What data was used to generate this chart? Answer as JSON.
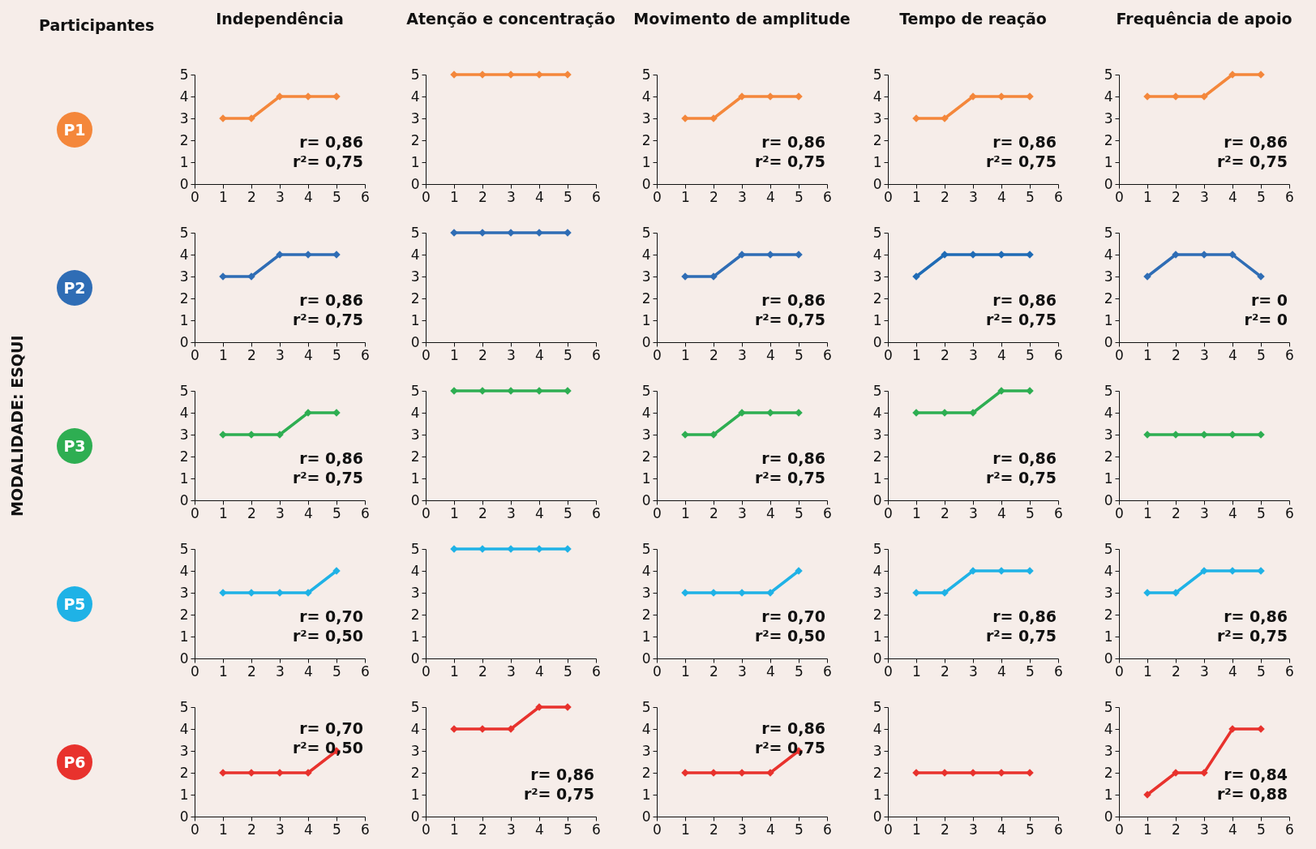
{
  "chart_data": [
    {
      "type": "other",
      "title": "MODALIDADE: ESQUI",
      "annotations": [
        "Participantes"
      ]
    },
    {
      "type": "line",
      "title": "Independência",
      "ylabel": "P1",
      "x": [
        1,
        2,
        3,
        4,
        5
      ],
      "series": [
        {
          "color": "#f4873b",
          "values": [
            3,
            3,
            4,
            4,
            4
          ]
        }
      ],
      "xlim": [
        0,
        6
      ],
      "xticks": [
        0,
        1,
        2,
        3,
        4,
        5,
        6
      ],
      "ylim": [
        0,
        5
      ],
      "yticks": [
        0,
        1,
        2,
        3,
        4,
        5
      ],
      "marker": "diamond",
      "annotations": [
        "r= 0,86",
        "r²= 0,75"
      ]
    },
    {
      "type": "line",
      "title": "Atenção e concentração",
      "x": [
        1,
        2,
        3,
        4,
        5
      ],
      "series": [
        {
          "color": "#f4873b",
          "values": [
            5,
            5,
            5,
            5,
            5
          ]
        }
      ],
      "xlim": [
        0,
        6
      ],
      "xticks": [
        0,
        1,
        2,
        3,
        4,
        5,
        6
      ],
      "ylim": [
        0,
        5
      ],
      "yticks": [
        0,
        1,
        2,
        3,
        4,
        5
      ],
      "marker": "diamond"
    },
    {
      "type": "line",
      "title": "Movimento de amplitude",
      "x": [
        1,
        2,
        3,
        4,
        5
      ],
      "series": [
        {
          "color": "#f4873b",
          "values": [
            3,
            3,
            4,
            4,
            4
          ]
        }
      ],
      "xlim": [
        0,
        6
      ],
      "xticks": [
        0,
        1,
        2,
        3,
        4,
        5,
        6
      ],
      "ylim": [
        0,
        5
      ],
      "yticks": [
        0,
        1,
        2,
        3,
        4,
        5
      ],
      "marker": "diamond",
      "annotations": [
        "r= 0,86",
        "r²= 0,75"
      ]
    },
    {
      "type": "line",
      "title": "Tempo de reação",
      "x": [
        1,
        2,
        3,
        4,
        5
      ],
      "series": [
        {
          "color": "#f4873b",
          "values": [
            3,
            3,
            4,
            4,
            4
          ]
        }
      ],
      "xlim": [
        0,
        6
      ],
      "xticks": [
        0,
        1,
        2,
        3,
        4,
        5,
        6
      ],
      "ylim": [
        0,
        5
      ],
      "yticks": [
        0,
        1,
        2,
        3,
        4,
        5
      ],
      "marker": "diamond",
      "annotations": [
        "r= 0,86",
        "r²= 0,75"
      ]
    },
    {
      "type": "line",
      "title": "Frequência de apoio",
      "x": [
        1,
        2,
        3,
        4,
        5
      ],
      "series": [
        {
          "color": "#f4873b",
          "values": [
            4,
            4,
            4,
            5,
            5
          ]
        }
      ],
      "xlim": [
        0,
        6
      ],
      "xticks": [
        0,
        1,
        2,
        3,
        4,
        5,
        6
      ],
      "ylim": [
        0,
        5
      ],
      "yticks": [
        0,
        1,
        2,
        3,
        4,
        5
      ],
      "marker": "diamond",
      "annotations": [
        "r= 0,86",
        "r²= 0,75"
      ]
    },
    {
      "type": "line",
      "ylabel": "P2",
      "x": [
        1,
        2,
        3,
        4,
        5
      ],
      "series": [
        {
          "color": "#2f6db5",
          "values": [
            3,
            3,
            4,
            4,
            4
          ]
        }
      ],
      "xlim": [
        0,
        6
      ],
      "xticks": [
        0,
        1,
        2,
        3,
        4,
        5,
        6
      ],
      "ylim": [
        0,
        5
      ],
      "yticks": [
        0,
        1,
        2,
        3,
        4,
        5
      ],
      "marker": "diamond",
      "annotations": [
        "r= 0,86",
        "r²= 0,75"
      ]
    },
    {
      "type": "line",
      "x": [
        1,
        2,
        3,
        4,
        5
      ],
      "series": [
        {
          "color": "#2f6db5",
          "values": [
            5,
            5,
            5,
            5,
            5
          ]
        }
      ],
      "xlim": [
        0,
        6
      ],
      "xticks": [
        0,
        1,
        2,
        3,
        4,
        5,
        6
      ],
      "ylim": [
        0,
        5
      ],
      "yticks": [
        0,
        1,
        2,
        3,
        4,
        5
      ],
      "marker": "diamond"
    },
    {
      "type": "line",
      "x": [
        1,
        2,
        3,
        4,
        5
      ],
      "series": [
        {
          "color": "#2f6db5",
          "values": [
            3,
            3,
            4,
            4,
            4
          ]
        }
      ],
      "xlim": [
        0,
        6
      ],
      "xticks": [
        0,
        1,
        2,
        3,
        4,
        5,
        6
      ],
      "ylim": [
        0,
        5
      ],
      "yticks": [
        0,
        1,
        2,
        3,
        4,
        5
      ],
      "marker": "diamond",
      "annotations": [
        "r= 0,86",
        "r²= 0,75"
      ]
    },
    {
      "type": "line",
      "x": [
        1,
        2,
        3,
        4,
        5
      ],
      "series": [
        {
          "color": "#1f6bb5",
          "values": [
            3,
            4,
            4,
            4,
            4
          ]
        }
      ],
      "xlim": [
        0,
        6
      ],
      "xticks": [
        0,
        1,
        2,
        3,
        4,
        5,
        6
      ],
      "ylim": [
        0,
        5
      ],
      "yticks": [
        0,
        1,
        2,
        3,
        4,
        5
      ],
      "marker": "diamond",
      "annotations": [
        "r= 0,86",
        "r²= 0,75"
      ]
    },
    {
      "type": "line",
      "x": [
        1,
        2,
        3,
        4,
        5
      ],
      "series": [
        {
          "color": "#2f6db5",
          "values": [
            3,
            4,
            4,
            4,
            3
          ]
        }
      ],
      "xlim": [
        0,
        6
      ],
      "xticks": [
        0,
        1,
        2,
        3,
        4,
        5,
        6
      ],
      "ylim": [
        0,
        5
      ],
      "yticks": [
        0,
        1,
        2,
        3,
        4,
        5
      ],
      "marker": "diamond",
      "annotations": [
        "r= 0",
        "r²= 0"
      ]
    },
    {
      "type": "line",
      "ylabel": "P3",
      "x": [
        1,
        2,
        3,
        4,
        5
      ],
      "series": [
        {
          "color": "#2eae52",
          "values": [
            3,
            3,
            3,
            4,
            4
          ]
        }
      ],
      "xlim": [
        0,
        6
      ],
      "xticks": [
        0,
        1,
        2,
        3,
        4,
        5,
        6
      ],
      "ylim": [
        0,
        5
      ],
      "yticks": [
        0,
        1,
        2,
        3,
        4,
        5
      ],
      "marker": "diamond",
      "annotations": [
        "r= 0,86",
        "r²= 0,75"
      ]
    },
    {
      "type": "line",
      "x": [
        1,
        2,
        3,
        4,
        5
      ],
      "series": [
        {
          "color": "#2eae52",
          "values": [
            5,
            5,
            5,
            5,
            5
          ]
        }
      ],
      "xlim": [
        0,
        6
      ],
      "xticks": [
        0,
        1,
        2,
        3,
        4,
        5,
        6
      ],
      "ylim": [
        0,
        5
      ],
      "yticks": [
        0,
        1,
        2,
        3,
        4,
        5
      ],
      "marker": "diamond"
    },
    {
      "type": "line",
      "x": [
        1,
        2,
        3,
        4,
        5
      ],
      "series": [
        {
          "color": "#2eae52",
          "values": [
            3,
            3,
            4,
            4,
            4
          ]
        }
      ],
      "xlim": [
        0,
        6
      ],
      "xticks": [
        0,
        1,
        2,
        3,
        4,
        5,
        6
      ],
      "ylim": [
        0,
        5
      ],
      "yticks": [
        0,
        1,
        2,
        3,
        4,
        5
      ],
      "marker": "diamond",
      "annotations": [
        "r= 0,86",
        "r²= 0,75"
      ]
    },
    {
      "type": "line",
      "x": [
        1,
        2,
        3,
        4,
        5
      ],
      "series": [
        {
          "color": "#2eae52",
          "values": [
            4,
            4,
            4,
            5,
            5
          ]
        }
      ],
      "xlim": [
        0,
        6
      ],
      "xticks": [
        0,
        1,
        2,
        3,
        4,
        5,
        6
      ],
      "ylim": [
        0,
        5
      ],
      "yticks": [
        0,
        1,
        2,
        3,
        4,
        5
      ],
      "marker": "diamond",
      "annotations": [
        "r= 0,86",
        "r²= 0,75"
      ]
    },
    {
      "type": "line",
      "x": [
        1,
        2,
        3,
        4,
        5
      ],
      "series": [
        {
          "color": "#2eae52",
          "values": [
            3,
            3,
            3,
            3,
            3
          ]
        }
      ],
      "xlim": [
        0,
        6
      ],
      "xticks": [
        0,
        1,
        2,
        3,
        4,
        5,
        6
      ],
      "ylim": [
        0,
        5
      ],
      "yticks": [
        0,
        1,
        2,
        3,
        4,
        5
      ],
      "marker": "diamond"
    },
    {
      "type": "line",
      "ylabel": "P5",
      "x": [
        1,
        2,
        3,
        4,
        5
      ],
      "series": [
        {
          "color": "#1fb2e6",
          "values": [
            3,
            3,
            3,
            3,
            4
          ]
        }
      ],
      "xlim": [
        0,
        6
      ],
      "xticks": [
        0,
        1,
        2,
        3,
        4,
        5,
        6
      ],
      "ylim": [
        0,
        5
      ],
      "yticks": [
        0,
        1,
        2,
        3,
        4,
        5
      ],
      "marker": "diamond",
      "annotations": [
        "r= 0,70",
        "r²= 0,50"
      ]
    },
    {
      "type": "line",
      "x": [
        1,
        2,
        3,
        4,
        5
      ],
      "series": [
        {
          "color": "#1fb2e6",
          "values": [
            5,
            5,
            5,
            5,
            5
          ]
        }
      ],
      "xlim": [
        0,
        6
      ],
      "xticks": [
        0,
        1,
        2,
        3,
        4,
        5,
        6
      ],
      "ylim": [
        0,
        5
      ],
      "yticks": [
        0,
        1,
        2,
        3,
        4,
        5
      ],
      "marker": "diamond"
    },
    {
      "type": "line",
      "x": [
        1,
        2,
        3,
        4,
        5
      ],
      "series": [
        {
          "color": "#1fb2e6",
          "values": [
            3,
            3,
            3,
            3,
            4
          ]
        }
      ],
      "xlim": [
        0,
        6
      ],
      "xticks": [
        0,
        1,
        2,
        3,
        4,
        5,
        6
      ],
      "ylim": [
        0,
        5
      ],
      "yticks": [
        0,
        1,
        2,
        3,
        4,
        5
      ],
      "marker": "diamond",
      "annotations": [
        "r= 0,70",
        "r²= 0,50"
      ]
    },
    {
      "type": "line",
      "x": [
        1,
        2,
        3,
        4,
        5
      ],
      "series": [
        {
          "color": "#1fb2e6",
          "values": [
            3,
            3,
            4,
            4,
            4
          ]
        }
      ],
      "xlim": [
        0,
        6
      ],
      "xticks": [
        0,
        1,
        2,
        3,
        4,
        5,
        6
      ],
      "ylim": [
        0,
        5
      ],
      "yticks": [
        0,
        1,
        2,
        3,
        4,
        5
      ],
      "marker": "diamond",
      "annotations": [
        "r= 0,86",
        "r²= 0,75"
      ]
    },
    {
      "type": "line",
      "x": [
        1,
        2,
        3,
        4,
        5
      ],
      "series": [
        {
          "color": "#1fb2e6",
          "values": [
            3,
            3,
            4,
            4,
            4
          ]
        }
      ],
      "xlim": [
        0,
        6
      ],
      "xticks": [
        0,
        1,
        2,
        3,
        4,
        5,
        6
      ],
      "ylim": [
        0,
        5
      ],
      "yticks": [
        0,
        1,
        2,
        3,
        4,
        5
      ],
      "marker": "diamond",
      "annotations": [
        "r= 0,86",
        "r²= 0,75"
      ]
    },
    {
      "type": "line",
      "ylabel": "P6",
      "x": [
        1,
        2,
        3,
        4,
        5
      ],
      "series": [
        {
          "color": "#e8322d",
          "values": [
            2,
            2,
            2,
            2,
            3
          ]
        }
      ],
      "xlim": [
        0,
        6
      ],
      "xticks": [
        0,
        1,
        2,
        3,
        4,
        5,
        6
      ],
      "ylim": [
        0,
        5
      ],
      "yticks": [
        0,
        1,
        2,
        3,
        4,
        5
      ],
      "marker": "diamond",
      "annotations": [
        "r= 0,70",
        "r²= 0,50"
      ]
    },
    {
      "type": "line",
      "x": [
        1,
        2,
        3,
        4,
        5
      ],
      "series": [
        {
          "color": "#e8322d",
          "values": [
            4,
            4,
            4,
            5,
            5
          ]
        }
      ],
      "xlim": [
        0,
        6
      ],
      "xticks": [
        0,
        1,
        2,
        3,
        4,
        5,
        6
      ],
      "ylim": [
        0,
        5
      ],
      "yticks": [
        0,
        1,
        2,
        3,
        4,
        5
      ],
      "marker": "diamond",
      "annotations": [
        "r= 0,86",
        "r²= 0,75"
      ]
    },
    {
      "type": "line",
      "x": [
        1,
        2,
        3,
        4,
        5
      ],
      "series": [
        {
          "color": "#e8322d",
          "values": [
            2,
            2,
            2,
            2,
            3
          ]
        }
      ],
      "xlim": [
        0,
        6
      ],
      "xticks": [
        0,
        1,
        2,
        3,
        4,
        5,
        6
      ],
      "ylim": [
        0,
        5
      ],
      "yticks": [
        0,
        1,
        2,
        3,
        4,
        5
      ],
      "marker": "diamond",
      "annotations": [
        "r= 0,86",
        "r²= 0,75"
      ]
    },
    {
      "type": "line",
      "x": [
        1,
        2,
        3,
        4,
        5
      ],
      "series": [
        {
          "color": "#e8322d",
          "values": [
            2,
            2,
            2,
            2,
            2
          ]
        }
      ],
      "xlim": [
        0,
        6
      ],
      "xticks": [
        0,
        1,
        2,
        3,
        4,
        5,
        6
      ],
      "ylim": [
        0,
        5
      ],
      "yticks": [
        0,
        1,
        2,
        3,
        4,
        5
      ],
      "marker": "diamond"
    },
    {
      "type": "line",
      "x": [
        1,
        2,
        3,
        4,
        5
      ],
      "series": [
        {
          "color": "#e8322d",
          "values": [
            1,
            2,
            2,
            4,
            4
          ]
        }
      ],
      "xlim": [
        0,
        6
      ],
      "xticks": [
        0,
        1,
        2,
        3,
        4,
        5,
        6
      ],
      "ylim": [
        0,
        5
      ],
      "yticks": [
        0,
        1,
        2,
        3,
        4,
        5
      ],
      "marker": "diamond",
      "annotations": [
        "r= 0,84",
        "r²= 0,88"
      ]
    }
  ]
}
